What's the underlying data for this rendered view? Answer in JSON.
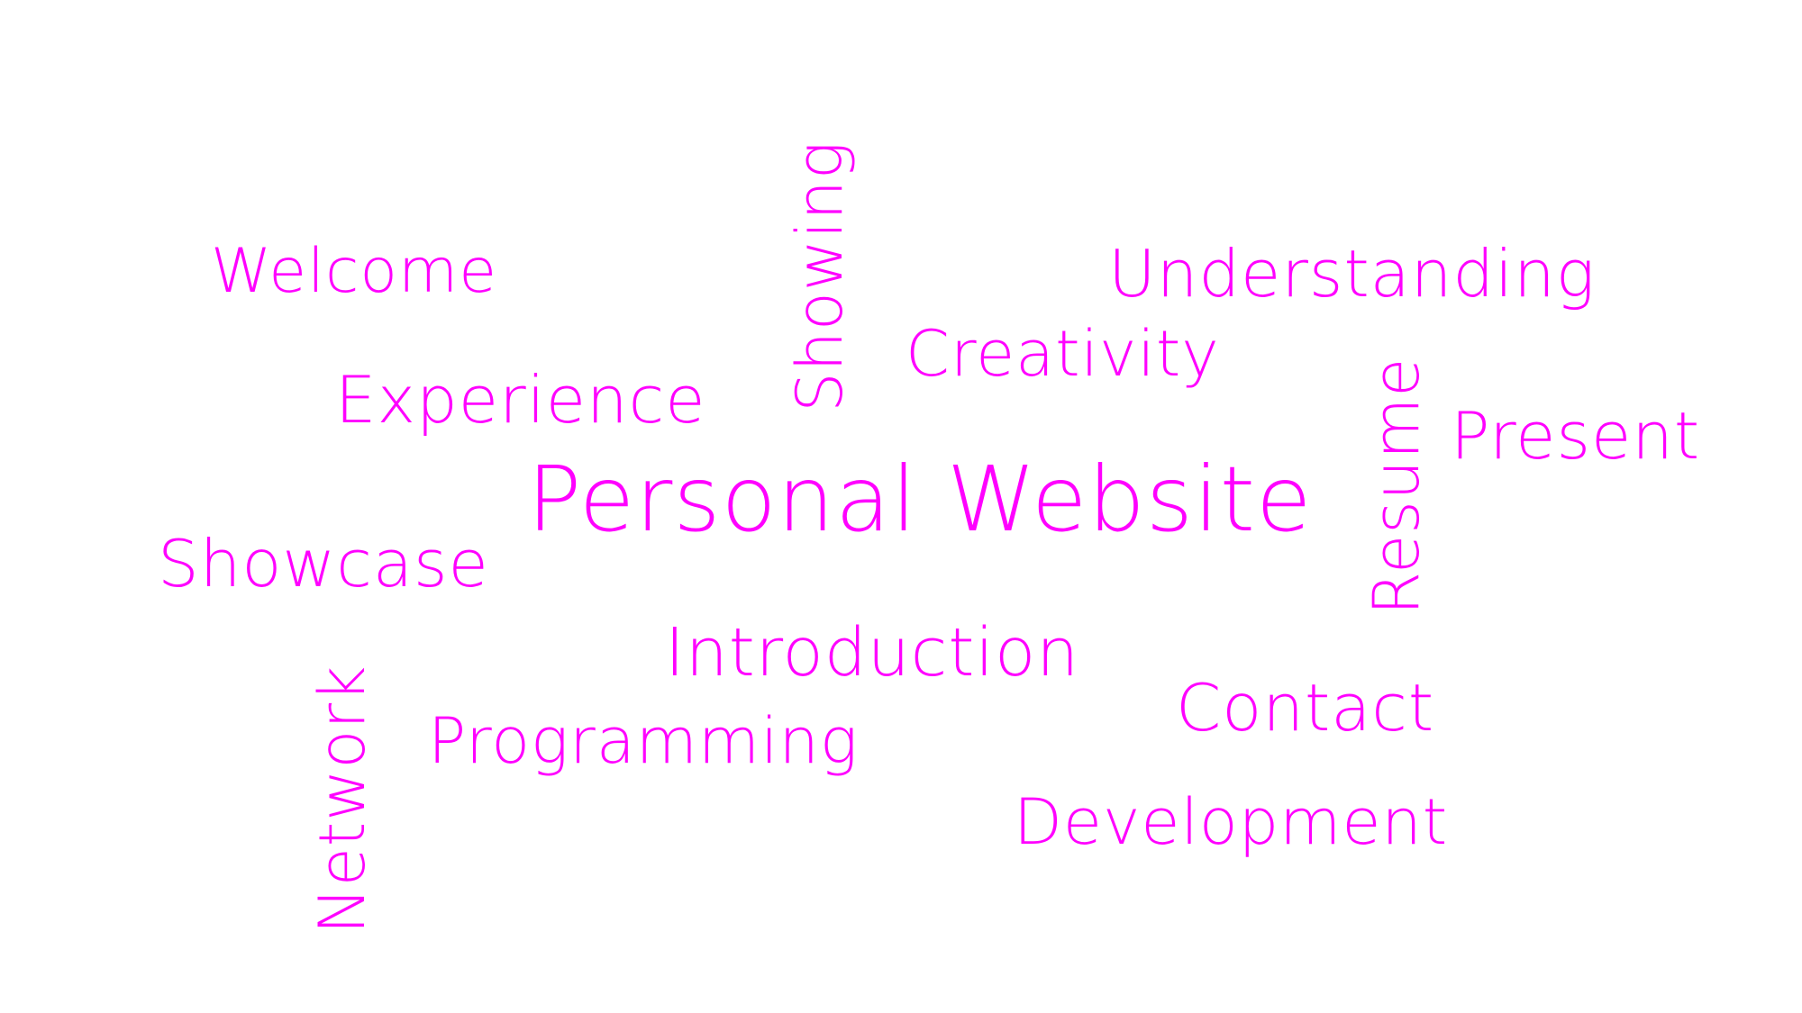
{
  "words": {
    "main": "Personal Website",
    "welcome": "Welcome",
    "showing": "Showing",
    "understanding": "Understanding",
    "creativity": "Creativity",
    "experience": "Experience",
    "resume": "Resume",
    "present": "Present",
    "showcase": "Showcase",
    "introduction": "Introduction",
    "network": "Network",
    "programming": "Programming",
    "contact": "Contact",
    "development": "Development"
  },
  "color": "#ff00ff",
  "background": "#ffffff"
}
